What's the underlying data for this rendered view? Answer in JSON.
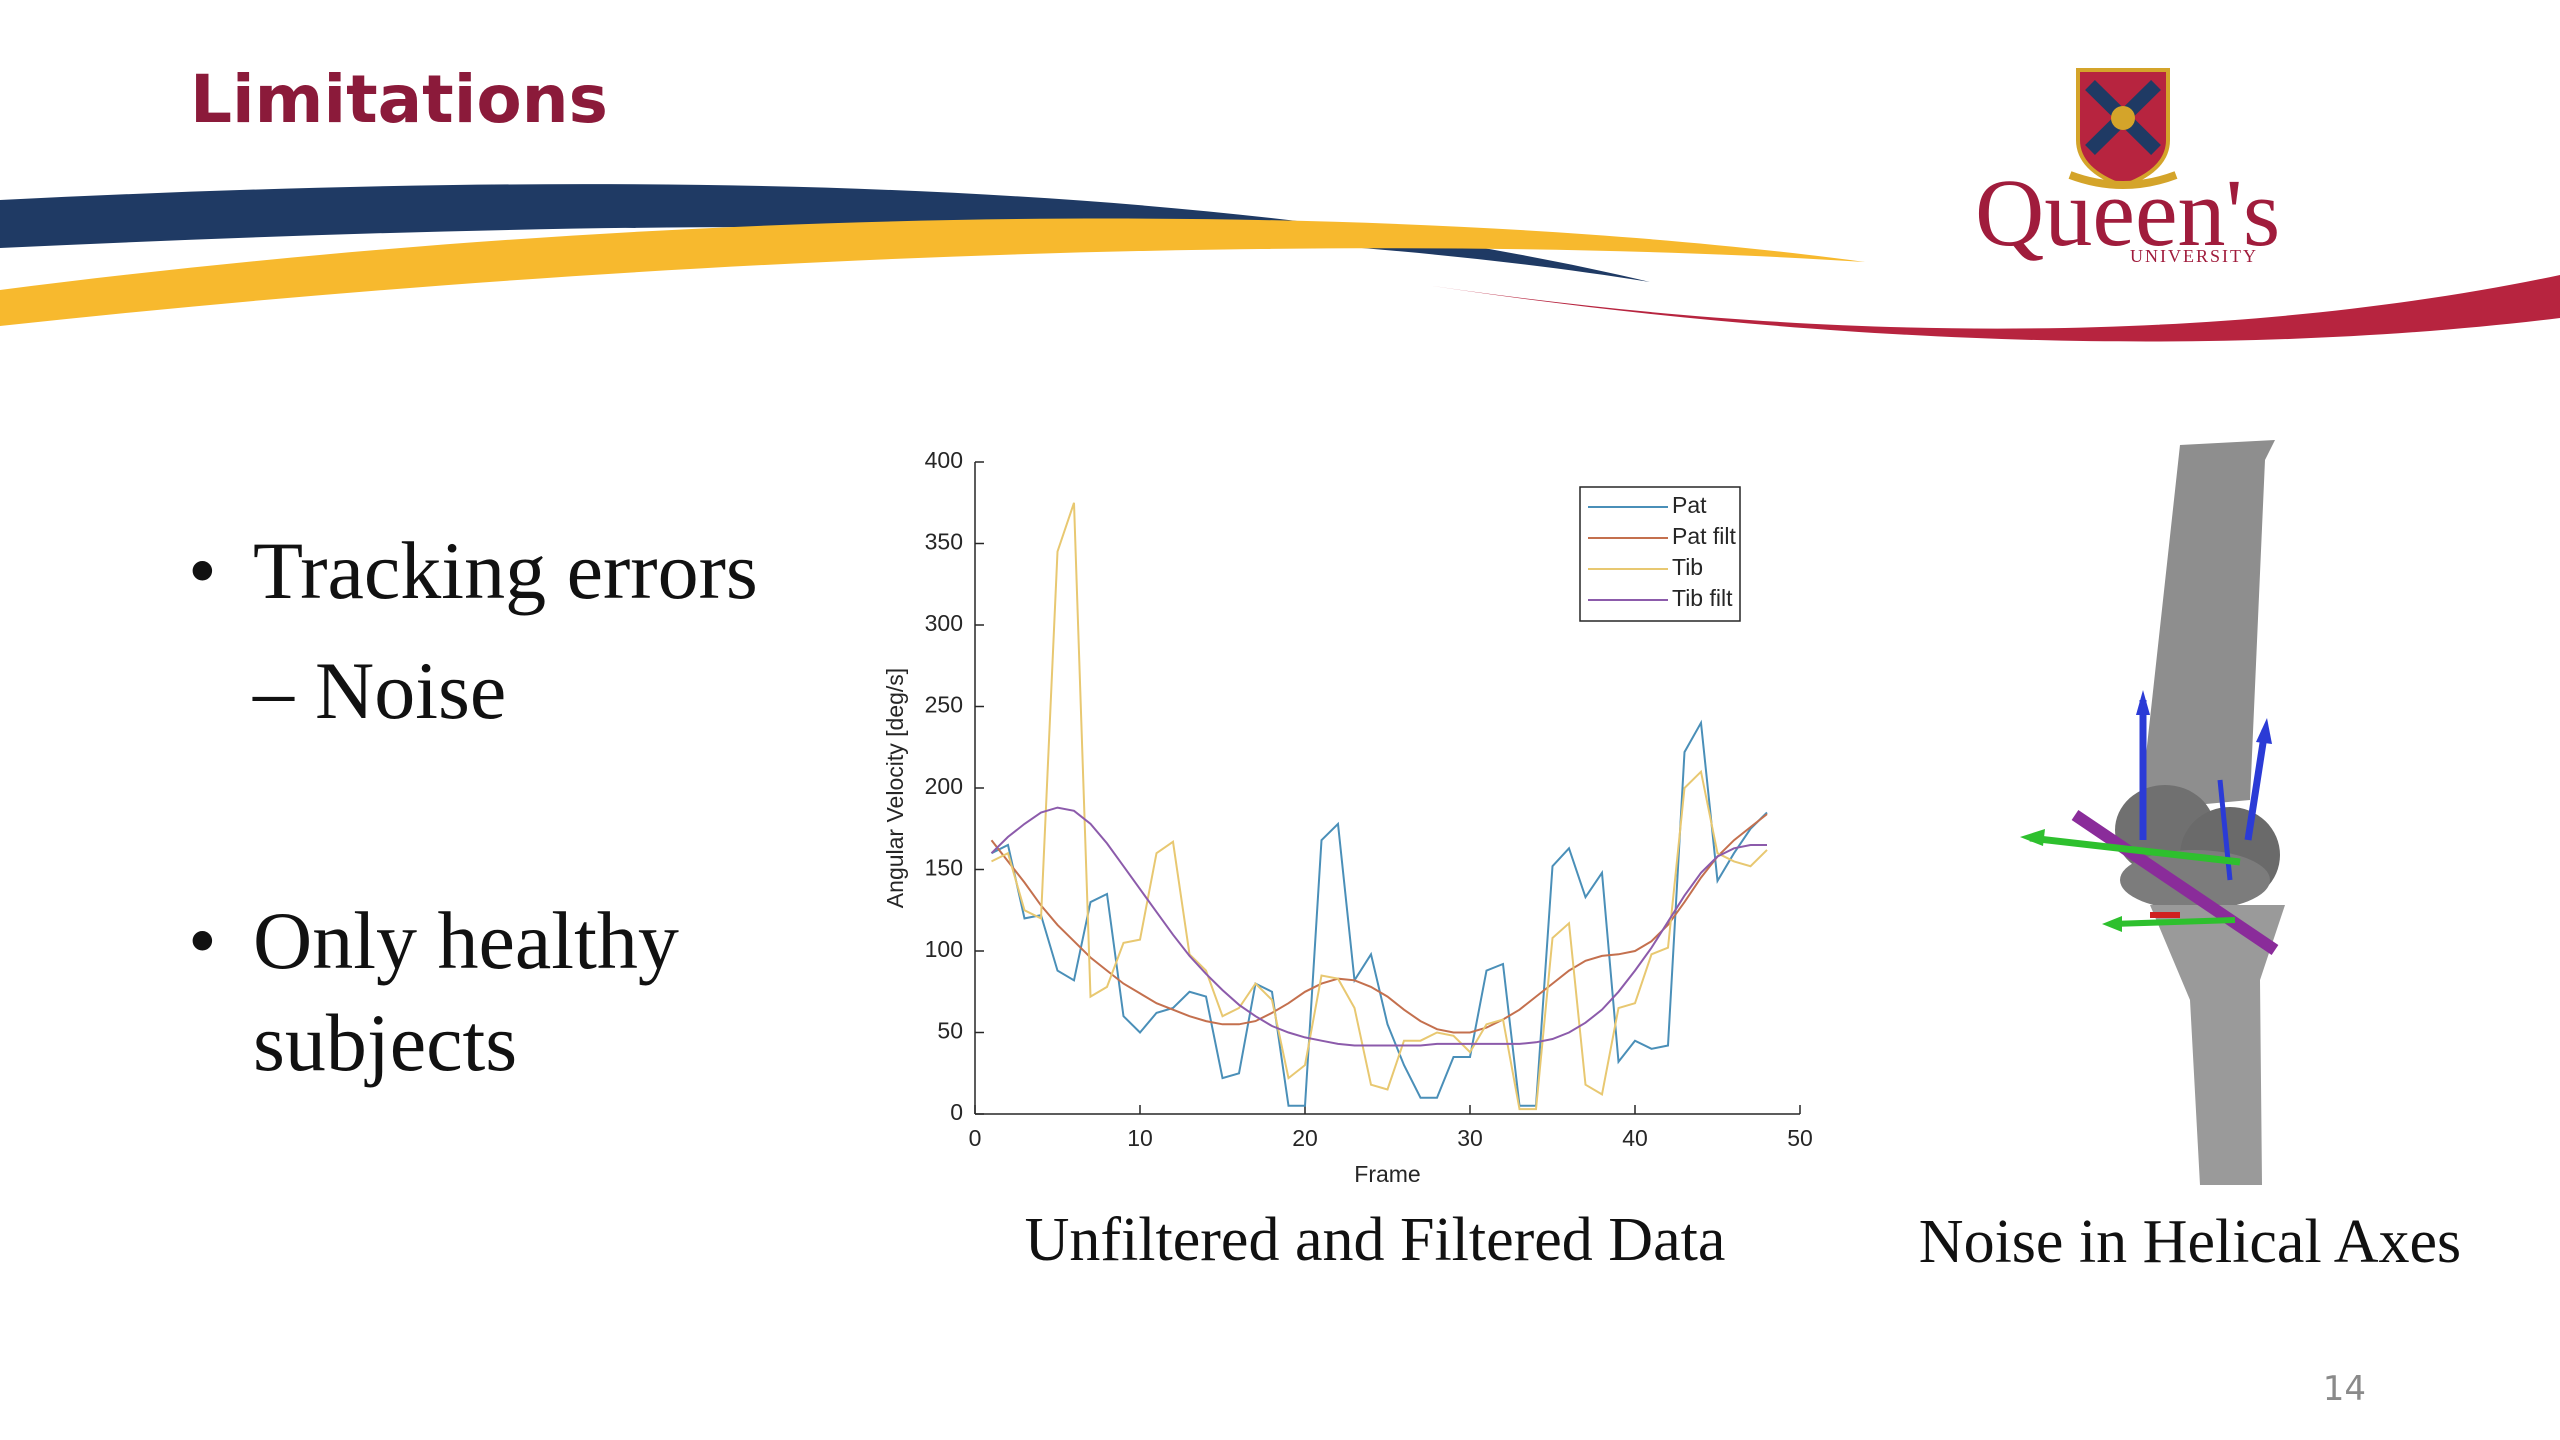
{
  "header": {
    "title": "Limitations"
  },
  "logo": {
    "name": "Queen's",
    "subtitle": "UNIVERSITY"
  },
  "bullets": [
    {
      "text": "Tracking errors",
      "sub": [
        "Noise"
      ]
    },
    {
      "text": "Only healthy",
      "text2": "subjects"
    }
  ],
  "captions": [
    "Unfiltered and Filtered Data",
    "Noise in Helical Axes"
  ],
  "page_number": "14",
  "chart_data": {
    "type": "line",
    "x_label": "Frame",
    "y_label": "Angular Velocity [deg/s]",
    "x": [
      1,
      2,
      3,
      4,
      5,
      6,
      7,
      8,
      9,
      10,
      11,
      12,
      13,
      14,
      15,
      16,
      17,
      18,
      19,
      20,
      21,
      22,
      23,
      24,
      25,
      26,
      27,
      28,
      29,
      30,
      31,
      32,
      33,
      34,
      35,
      36,
      37,
      38,
      39,
      40,
      41,
      42,
      43,
      44,
      45,
      46,
      47,
      48
    ],
    "series": [
      {
        "name": "Pat",
        "color": "#4a8fb8",
        "values": [
          160,
          165,
          120,
          122,
          88,
          82,
          130,
          135,
          60,
          50,
          62,
          65,
          75,
          72,
          22,
          25,
          80,
          75,
          5,
          5,
          168,
          178,
          82,
          98,
          55,
          30,
          10,
          10,
          35,
          35,
          88,
          92,
          5,
          5,
          152,
          163,
          133,
          148,
          32,
          45,
          40,
          42,
          222,
          240,
          143,
          160,
          175,
          185
        ]
      },
      {
        "name": "Pat filt",
        "color": "#c4704e",
        "values": [
          168,
          155,
          142,
          128,
          116,
          106,
          96,
          88,
          80,
          74,
          68,
          64,
          60,
          57,
          55,
          55,
          57,
          62,
          68,
          75,
          80,
          83,
          82,
          78,
          72,
          64,
          57,
          52,
          50,
          50,
          53,
          58,
          64,
          72,
          80,
          88,
          94,
          97,
          98,
          100,
          106,
          116,
          130,
          145,
          158,
          168,
          176,
          184
        ]
      },
      {
        "name": "Tib",
        "color": "#e8c871",
        "values": [
          155,
          160,
          125,
          120,
          345,
          375,
          72,
          78,
          105,
          107,
          160,
          167,
          98,
          88,
          60,
          65,
          80,
          70,
          22,
          30,
          85,
          83,
          65,
          18,
          15,
          45,
          45,
          50,
          48,
          38,
          55,
          58,
          3,
          3,
          108,
          117,
          18,
          12,
          65,
          68,
          98,
          102,
          200,
          210,
          160,
          155,
          152,
          162
        ]
      },
      {
        "name": "Tib filt",
        "color": "#8c5bab",
        "values": [
          160,
          170,
          178,
          185,
          188,
          186,
          178,
          166,
          152,
          138,
          124,
          110,
          97,
          86,
          76,
          67,
          60,
          54,
          50,
          47,
          45,
          43,
          42,
          42,
          42,
          42,
          42,
          43,
          43,
          43,
          43,
          43,
          43,
          44,
          46,
          50,
          56,
          64,
          75,
          88,
          102,
          118,
          134,
          148,
          158,
          163,
          165,
          165
        ]
      }
    ],
    "xlim": [
      0,
      50
    ],
    "xticks": [
      0,
      10,
      20,
      30,
      40,
      50
    ],
    "ylim": [
      0,
      400
    ],
    "yticks": [
      0,
      50,
      100,
      150,
      200,
      250,
      300,
      350,
      400
    ],
    "grid": false,
    "legend": "upper-right"
  }
}
